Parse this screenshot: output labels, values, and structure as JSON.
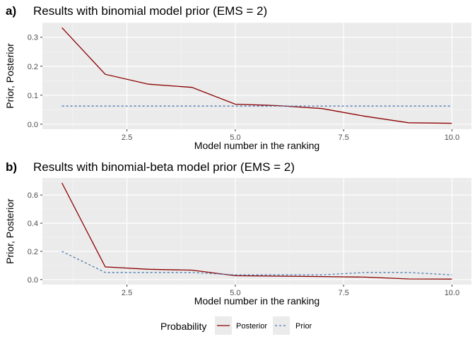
{
  "legend": {
    "title": "Probability",
    "items": [
      {
        "label": "Posterior",
        "color": "#8b0000",
        "dash": "none"
      },
      {
        "label": "Prior",
        "color": "#4a78b0",
        "dash": "3,3"
      }
    ]
  },
  "chart_data": [
    {
      "type": "line",
      "tag": "a)",
      "title": "Results with binomial model prior (EMS = 2)",
      "xlabel": "Model number in the ranking",
      "ylabel": "Prior, Posterior",
      "xlim": [
        0.55,
        10.45
      ],
      "ylim": [
        -0.0175,
        0.3505
      ],
      "xticks": [
        2.5,
        5.0,
        7.5,
        10.0
      ],
      "xtick_labels": [
        "2.5",
        "5.0",
        "7.5",
        "10.0"
      ],
      "yticks": [
        0.0,
        0.1,
        0.2,
        0.3
      ],
      "ytick_labels": [
        "0.0",
        "0.1",
        "0.2",
        "0.3"
      ],
      "grid": true,
      "x": [
        1,
        2,
        3,
        4,
        5,
        6,
        7,
        8,
        9,
        10
      ],
      "series": [
        {
          "name": "Posterior",
          "color": "#8b0000",
          "values": [
            0.333,
            0.172,
            0.138,
            0.127,
            0.069,
            0.064,
            0.054,
            0.027,
            0.005,
            0.003
          ]
        },
        {
          "name": "Prior",
          "color": "#4a78b0",
          "values": [
            0.0625,
            0.0625,
            0.0625,
            0.0625,
            0.0625,
            0.0625,
            0.0625,
            0.0625,
            0.0625,
            0.0625
          ]
        }
      ]
    },
    {
      "type": "line",
      "tag": "b)",
      "title": "Results with binomial-beta model prior (EMS = 2)",
      "xlabel": "Model number in the ranking",
      "ylabel": "Prior, Posterior",
      "xlim": [
        0.55,
        10.45
      ],
      "ylim": [
        -0.036,
        0.721
      ],
      "xticks": [
        2.5,
        5.0,
        7.5,
        10.0
      ],
      "xtick_labels": [
        "2.5",
        "5.0",
        "7.5",
        "10.0"
      ],
      "yticks": [
        0.0,
        0.2,
        0.4,
        0.6
      ],
      "ytick_labels": [
        "0.0",
        "0.2",
        "0.4",
        "0.6"
      ],
      "grid": true,
      "x": [
        1,
        2,
        3,
        4,
        5,
        6,
        7,
        8,
        9,
        10
      ],
      "series": [
        {
          "name": "Posterior",
          "color": "#8b0000",
          "values": [
            0.686,
            0.09,
            0.073,
            0.067,
            0.027,
            0.024,
            0.021,
            0.017,
            0.004,
            0.003
          ]
        },
        {
          "name": "Prior",
          "color": "#4a78b0",
          "values": [
            0.2,
            0.05,
            0.05,
            0.05,
            0.033,
            0.033,
            0.033,
            0.05,
            0.05,
            0.033
          ]
        }
      ]
    }
  ]
}
